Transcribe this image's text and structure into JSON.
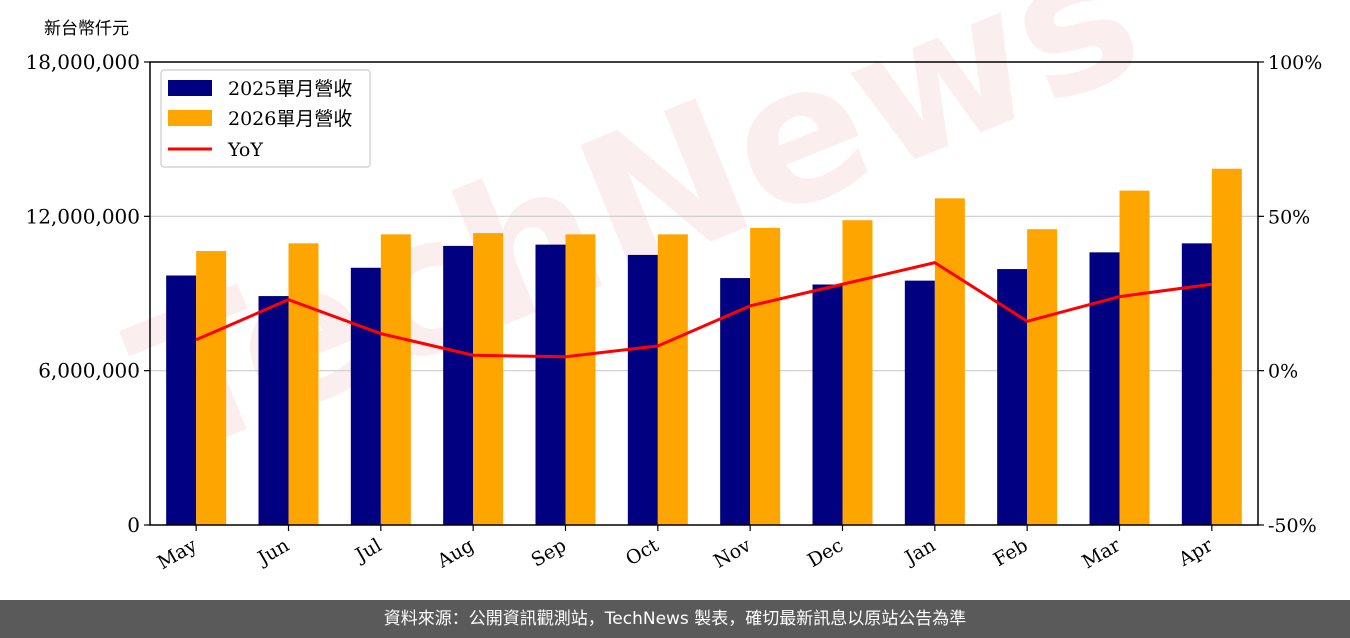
{
  "unit_label": "新台幣仟元",
  "footer_text": "資料來源：公開資訊觀測站，TechNews 製表，確切最新訊息以原站公告為準",
  "watermark": "TechNews",
  "colors": {
    "bar2025": "#000080",
    "bar2026": "#ffa500",
    "yoy": "#ff0000",
    "footer_bg": "#5a5a5a"
  },
  "chart_data": {
    "type": "bar",
    "categories": [
      "May",
      "Jun",
      "Jul",
      "Aug",
      "Sep",
      "Oct",
      "Nov",
      "Dec",
      "Jan",
      "Feb",
      "Mar",
      "Apr"
    ],
    "series": [
      {
        "name": "2025單月營收",
        "type": "bar",
        "axis": "left",
        "values": [
          9700000,
          8900000,
          10000000,
          10850000,
          10900000,
          10500000,
          9600000,
          9350000,
          9500000,
          9950000,
          10600000,
          10950000
        ]
      },
      {
        "name": "2026單月營收",
        "type": "bar",
        "axis": "left",
        "values": [
          10650000,
          10950000,
          11300000,
          11350000,
          11300000,
          11300000,
          11550000,
          11850000,
          12700000,
          11500000,
          13000000,
          13850000
        ]
      },
      {
        "name": "YoY",
        "type": "line",
        "axis": "right",
        "values": [
          10,
          23,
          12,
          5,
          4.5,
          8,
          21,
          28,
          35,
          16,
          24,
          28
        ]
      }
    ],
    "y_left": {
      "ylim": [
        0,
        18000000
      ],
      "ticks": [
        "0",
        "6,000,000",
        "12,000,000",
        "18,000,000"
      ],
      "tick_values": [
        0,
        6000000,
        12000000,
        18000000
      ]
    },
    "y_right": {
      "ylim": [
        -50,
        100
      ],
      "ticks": [
        "-50%",
        "0%",
        "50%",
        "100%"
      ],
      "tick_values": [
        -50,
        0,
        50,
        100
      ]
    },
    "grid": "horizontal",
    "legend_position": "top-left"
  }
}
